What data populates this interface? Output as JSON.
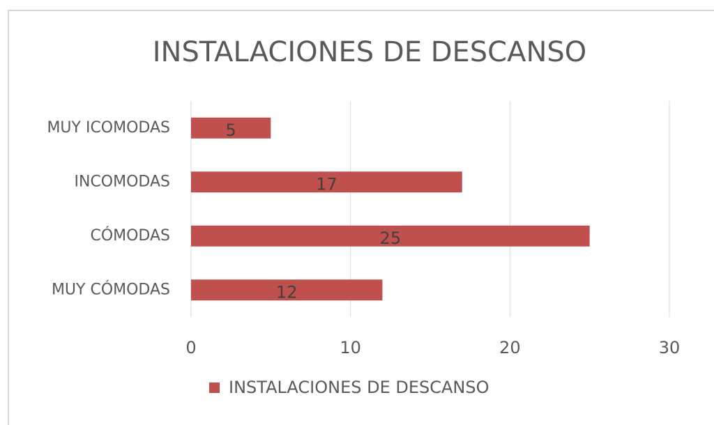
{
  "chart_data": {
    "type": "bar",
    "orientation": "horizontal",
    "title": "INSTALACIONES DE DESCANSO",
    "categories": [
      "MUY ICOMODAS",
      "INCOMODAS",
      "CÓMODAS",
      "MUY CÓMODAS"
    ],
    "series": [
      {
        "name": "INSTALACIONES DE DESCANSO",
        "color": "#c0504d",
        "values": [
          5,
          17,
          25,
          12
        ]
      }
    ],
    "xlim": [
      0,
      30
    ],
    "xticks": [
      0,
      10,
      20,
      30
    ],
    "grid": true,
    "legend": "bottom"
  }
}
